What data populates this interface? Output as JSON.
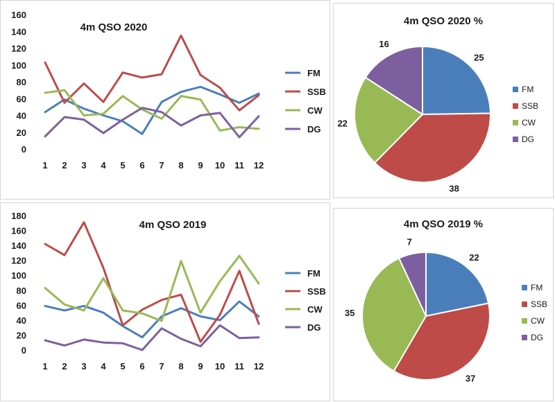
{
  "colors": {
    "FM": "#4a7ebb",
    "SSB": "#be4b48",
    "CW": "#98b954",
    "DG": "#7d5fa0"
  },
  "chart_data": [
    {
      "type": "line",
      "title": "4m QSO 2020",
      "categories": [
        "1",
        "2",
        "3",
        "4",
        "5",
        "6",
        "7",
        "8",
        "9",
        "10",
        "11",
        "12"
      ],
      "ylim": [
        0,
        160
      ],
      "yticks": [
        "0",
        "20",
        "40",
        "60",
        "80",
        "100",
        "120",
        "140",
        "160"
      ],
      "series": [
        {
          "name": "FM",
          "values": [
            44,
            59,
            48,
            40,
            33,
            18,
            56,
            68,
            74,
            65,
            55,
            66
          ]
        },
        {
          "name": "SSB",
          "values": [
            103,
            55,
            78,
            56,
            91,
            85,
            89,
            135,
            88,
            73,
            46,
            64
          ]
        },
        {
          "name": "CW",
          "values": [
            67,
            70,
            40,
            42,
            63,
            47,
            36,
            63,
            59,
            22,
            26,
            24
          ]
        },
        {
          "name": "DG",
          "values": [
            15,
            38,
            35,
            19,
            35,
            49,
            44,
            28,
            40,
            43,
            14,
            39
          ]
        }
      ]
    },
    {
      "type": "pie",
      "title": "4m QSO 2020 %",
      "labels": [
        "FM",
        "SSB",
        "CW",
        "DG"
      ],
      "values": [
        25,
        38,
        22,
        16
      ],
      "value_labels": [
        "25",
        "38",
        "22",
        "16"
      ]
    },
    {
      "type": "line",
      "title": "4m QSO 2019",
      "categories": [
        "1",
        "2",
        "3",
        "4",
        "5",
        "6",
        "7",
        "8",
        "9",
        "10",
        "11",
        "12"
      ],
      "ylim": [
        0,
        180
      ],
      "yticks": [
        "0",
        "20",
        "40",
        "60",
        "80",
        "100",
        "120",
        "140",
        "160",
        "180"
      ],
      "series": [
        {
          "name": "FM",
          "values": [
            59,
            53,
            59,
            50,
            32,
            17,
            45,
            56,
            45,
            40,
            65,
            45
          ]
        },
        {
          "name": "SSB",
          "values": [
            142,
            127,
            171,
            110,
            33,
            54,
            67,
            74,
            11,
            47,
            106,
            35
          ]
        },
        {
          "name": "CW",
          "values": [
            83,
            61,
            53,
            96,
            53,
            49,
            39,
            119,
            50,
            92,
            126,
            89
          ]
        },
        {
          "name": "DG",
          "values": [
            13,
            6,
            14,
            10,
            9,
            0,
            29,
            15,
            5,
            33,
            16,
            17
          ]
        }
      ]
    },
    {
      "type": "pie",
      "title": "4m QSO 2019 %",
      "labels": [
        "FM",
        "SSB",
        "CW",
        "DG"
      ],
      "values": [
        22,
        37,
        35,
        7
      ],
      "value_labels": [
        "22",
        "37",
        "35",
        "7"
      ]
    }
  ]
}
